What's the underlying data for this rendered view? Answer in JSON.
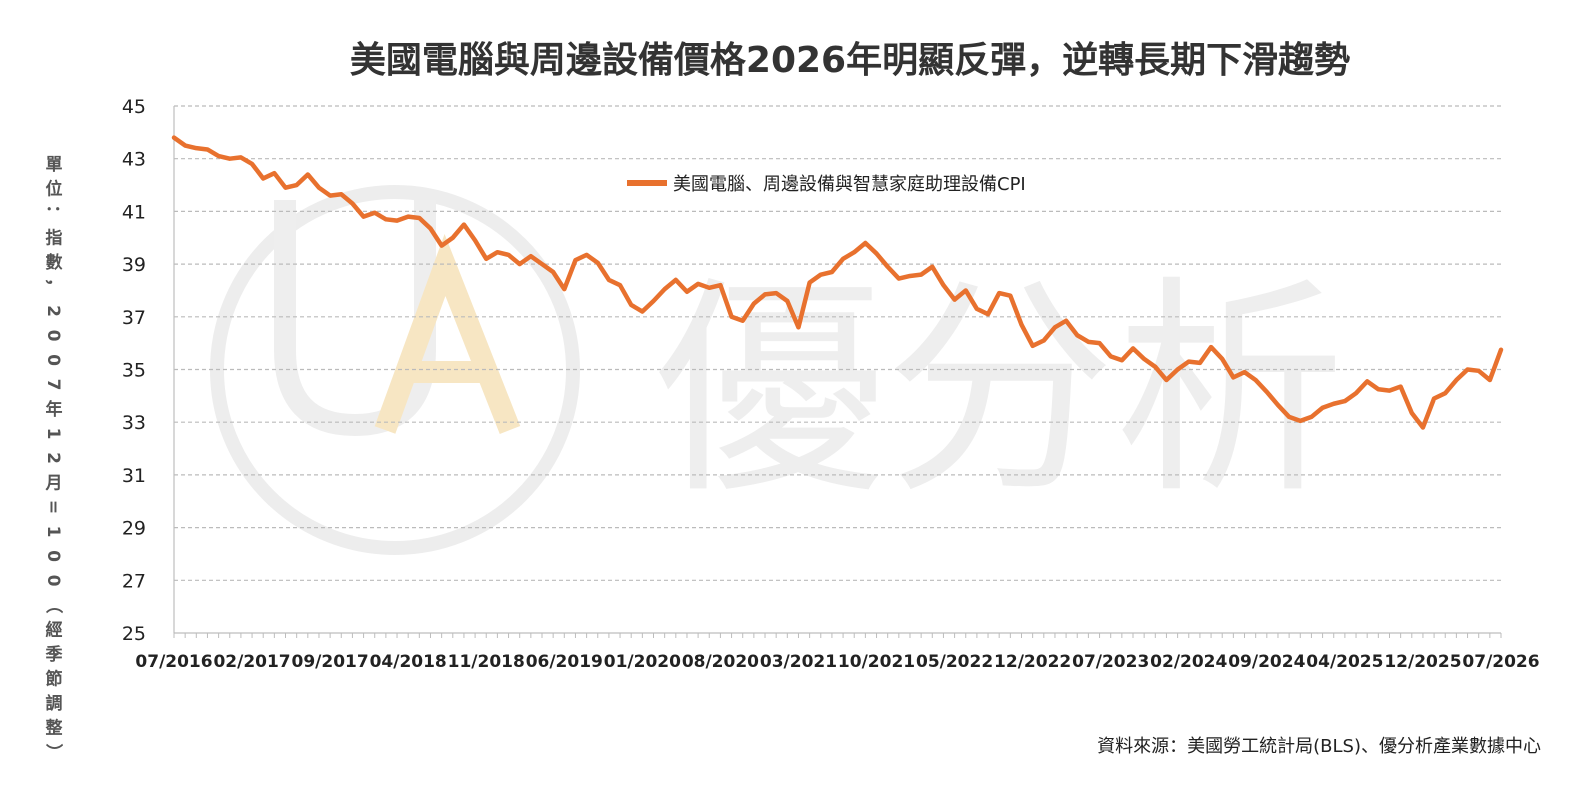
{
  "chart_data": {
    "type": "line",
    "title": "美國電腦與周邊設備價格2026年明顯反彈，逆轉長期下滑趨勢",
    "ylabel": "單位：指數，2007年12月=100（經季節調整）",
    "xlabel": "",
    "ylim": [
      25,
      45
    ],
    "yticks": [
      "45",
      "43",
      "41",
      "39",
      "37",
      "35",
      "33",
      "31",
      "29",
      "27",
      "25"
    ],
    "xticks": [
      "07/2016",
      "02/2017",
      "09/2017",
      "04/2018",
      "11/2018",
      "06/2019",
      "01/2020",
      "08/2020",
      "03/2021",
      "10/2021",
      "05/2022",
      "12/2022",
      "07/2023",
      "02/2024",
      "09/2024",
      "04/2025",
      "12/2025",
      "07/2026"
    ],
    "grid": true,
    "legend_position": "top-center",
    "series": [
      {
        "name": "美國電腦、周邊設備與智慧家庭助理設備CPI",
        "color": "#E8712E",
        "x_start": "07/2016",
        "x_end": "07/2026",
        "values": [
          43.8,
          43.5,
          43.4,
          43.35,
          43.1,
          43.0,
          43.05,
          42.8,
          42.25,
          42.45,
          41.9,
          42.0,
          42.4,
          41.9,
          41.6,
          41.65,
          41.3,
          40.8,
          40.95,
          40.7,
          40.65,
          40.8,
          40.75,
          40.35,
          39.7,
          40.0,
          40.5,
          39.9,
          39.2,
          39.45,
          39.35,
          39.0,
          39.3,
          39.0,
          38.7,
          38.05,
          39.15,
          39.35,
          39.05,
          38.4,
          38.2,
          37.45,
          37.2,
          37.6,
          38.05,
          38.4,
          37.95,
          38.25,
          38.1,
          38.2,
          37.0,
          36.85,
          37.5,
          37.85,
          37.9,
          37.6,
          36.6,
          38.3,
          38.6,
          38.7,
          39.2,
          39.45,
          39.8,
          39.4,
          38.9,
          38.45,
          38.55,
          38.6,
          38.9,
          38.2,
          37.65,
          38.0,
          37.3,
          37.1,
          37.9,
          37.8,
          36.7,
          35.9,
          36.1,
          36.6,
          36.85,
          36.3,
          36.05,
          36.0,
          35.5,
          35.35,
          35.8,
          35.4,
          35.1,
          34.6,
          35.0,
          35.3,
          35.25,
          35.85,
          35.4,
          34.7,
          34.9,
          34.6,
          34.15,
          33.65,
          33.2,
          33.05,
          33.2,
          33.55,
          33.7,
          33.8,
          34.1,
          34.55,
          34.25,
          34.2,
          34.35,
          33.35,
          32.8,
          33.9,
          34.1,
          34.6,
          35.0,
          34.95,
          34.6,
          35.75
        ]
      }
    ],
    "source": "資料來源：美國勞工統計局(BLS)、優分析產業數據中心"
  },
  "watermark": {
    "text": "優分析",
    "logo_text": "UA",
    "text_color": "#eeeeee",
    "logo_accent": "#f7e6c3"
  },
  "colors": {
    "line": "#E8712E",
    "grid": "#bbbbbb",
    "axis": "#bdbdbd"
  }
}
